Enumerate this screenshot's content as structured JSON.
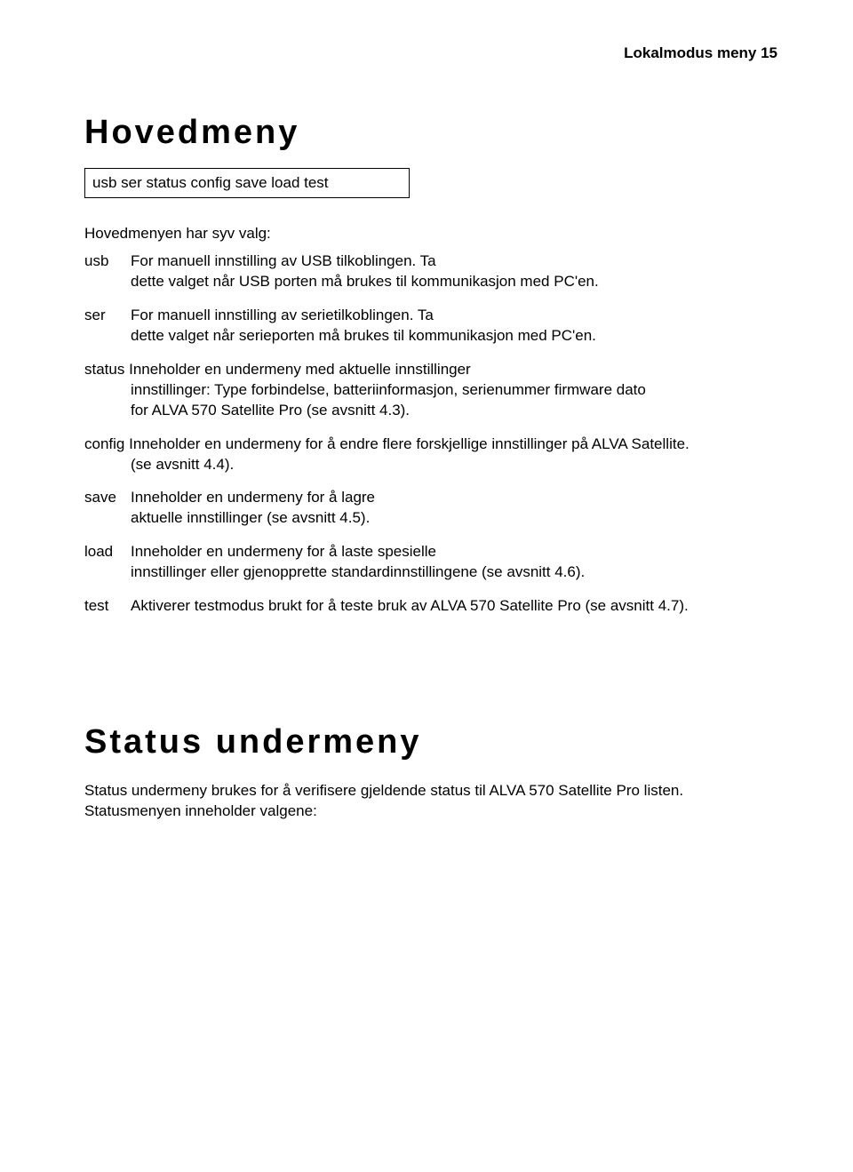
{
  "header": {
    "text": "Lokalmodus meny 15"
  },
  "section1": {
    "title": "Hovedmeny",
    "box": "usb ser status config save load test",
    "intro": "Hovedmenyen har syv valg:",
    "items": {
      "usb": {
        "term": "usb",
        "line1": "For manuell innstilling av USB tilkoblingen. Ta",
        "line2": "dette valget når USB porten må brukes til kommunikasjon med PC'en."
      },
      "ser": {
        "term": "ser",
        "line1": "For manuell innstilling av serietilkoblingen. Ta",
        "line2": "dette valget når serieporten må brukes til kommunikasjon med PC'en."
      },
      "status": {
        "term": "status",
        "line1": "Inneholder en undermeny med aktuelle innstillinger",
        "line2": "innstillinger: Type forbindelse, batteriinformasjon, serienummer firmware dato",
        "line3": "for ALVA 570 Satellite Pro (se avsnitt 4.3)."
      },
      "config": {
        "term": "config",
        "line1": "Inneholder en undermeny for å endre flere forskjellige innstillinger på ALVA Satellite.",
        "line2": "(se avsnitt 4.4)."
      },
      "save": {
        "term": "save",
        "line1": "Inneholder en undermeny for å lagre",
        "line2": "aktuelle innstillinger (se avsnitt 4.5)."
      },
      "load": {
        "term": "load",
        "line1": "Inneholder en undermeny for å laste spesielle",
        "line2": "innstillinger eller gjenopprette standardinnstillingene (se avsnitt 4.6)."
      },
      "test": {
        "term": "test",
        "line1": "Aktiverer testmodus brukt for å teste bruk av ALVA 570 Satellite Pro (se avsnitt 4.7)."
      }
    }
  },
  "section2": {
    "title": "Status undermeny",
    "para": "Status undermeny brukes for å verifisere gjeldende status til ALVA 570 Satellite Pro listen. Statusmenyen inneholder valgene:"
  }
}
